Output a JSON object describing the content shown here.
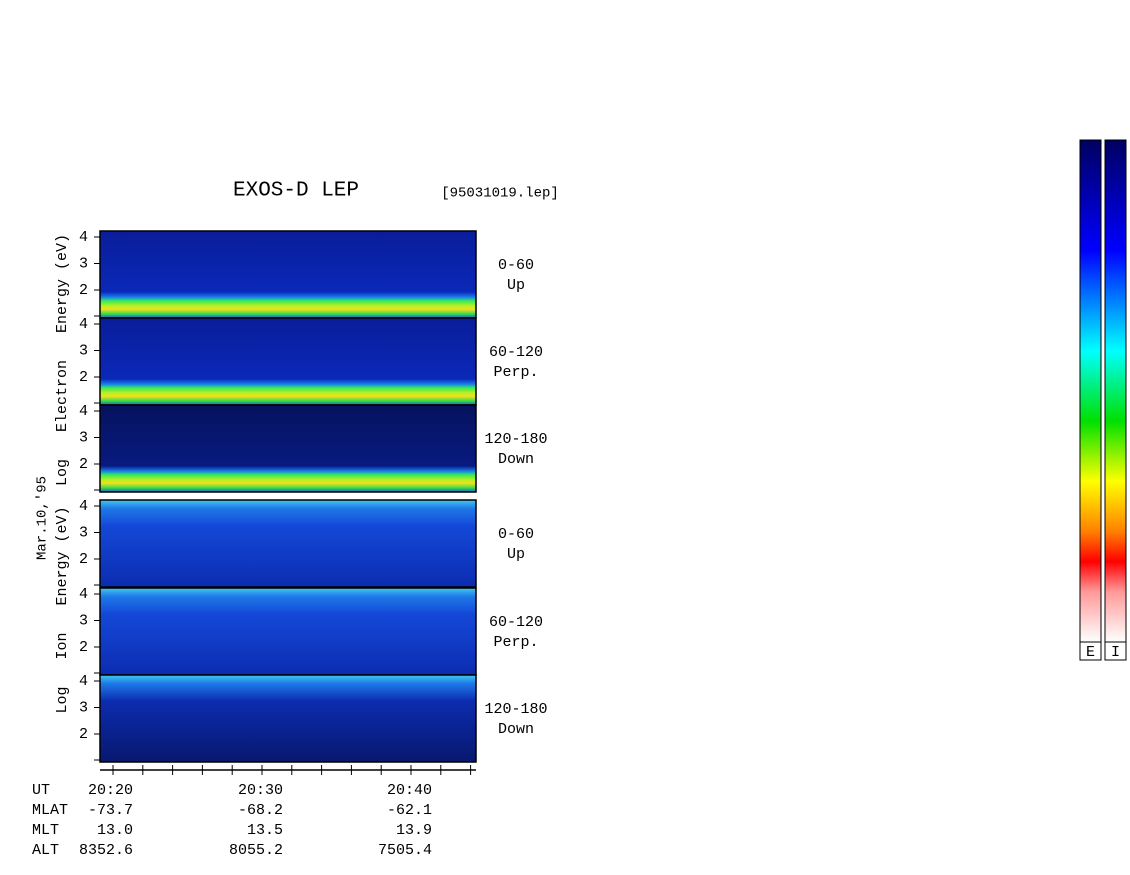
{
  "header": {
    "title": "EXOS-D LEP",
    "file": "[95031019.lep]"
  },
  "date": "Mar.10,'95",
  "electron": {
    "axis_label": "Log   Electron   Energy (eV)",
    "panels": [
      {
        "range": "0-60",
        "direction": "Up",
        "ticks": [
          "4",
          "3",
          "2"
        ]
      },
      {
        "range": "60-120",
        "direction": "Perp.",
        "ticks": [
          "4",
          "3",
          "2"
        ]
      },
      {
        "range": "120-180",
        "direction": "Down",
        "ticks": [
          "4",
          "3",
          "2"
        ]
      }
    ]
  },
  "ion": {
    "axis_label": "Log   Ion   Energy (eV)",
    "panels": [
      {
        "range": "0-60",
        "direction": "Up",
        "ticks": [
          "4",
          "3",
          "2"
        ]
      },
      {
        "range": "60-120",
        "direction": "Perp.",
        "ticks": [
          "4",
          "3",
          "2"
        ]
      },
      {
        "range": "120-180",
        "direction": "Down",
        "ticks": [
          "4",
          "3",
          "2"
        ]
      }
    ]
  },
  "time_axis": {
    "row_labels": [
      "UT",
      "MLAT",
      "MLT",
      "ALT"
    ],
    "columns": [
      [
        "20:20",
        "-73.7",
        "13.0",
        "8352.6"
      ],
      [
        "20:30",
        "-68.2",
        "13.5",
        "8055.2"
      ],
      [
        "20:40",
        "-62.1",
        "13.9",
        "7505.4"
      ]
    ]
  },
  "colorbars": [
    "E",
    "I"
  ]
}
